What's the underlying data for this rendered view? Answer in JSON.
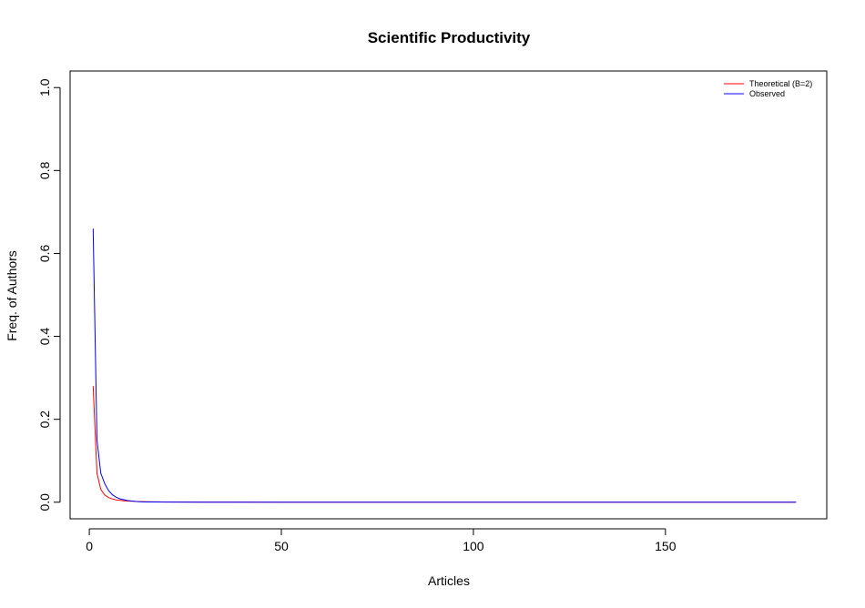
{
  "chart_data": {
    "type": "line",
    "title": "Scientific Productivity",
    "xlabel": "Articles",
    "ylabel": "Freq. of Authors",
    "xlim": [
      -5,
      192
    ],
    "ylim": [
      -0.04,
      1.04
    ],
    "xticks": [
      0,
      50,
      100,
      150
    ],
    "yticks": [
      0.0,
      0.2,
      0.4,
      0.6,
      0.8,
      1.0
    ],
    "xtick_labels": [
      "0",
      "50",
      "100",
      "150"
    ],
    "ytick_labels": [
      "0.0",
      "0.2",
      "0.4",
      "0.6",
      "0.8",
      "1.0"
    ],
    "grid": false,
    "legend_position": "top-right",
    "series": [
      {
        "name": "Theoretical (B=2)",
        "color": "#ff0000",
        "x": [
          1,
          2,
          3,
          4,
          5,
          6,
          7,
          8,
          9,
          10,
          12,
          15,
          20,
          30,
          50,
          100,
          150,
          184
        ],
        "y": [
          0.28,
          0.07,
          0.031,
          0.0175,
          0.0112,
          0.0078,
          0.0057,
          0.0044,
          0.0035,
          0.0028,
          0.0019,
          0.0012,
          0.0007,
          0.0003,
          0.0001,
          0.0,
          0.0,
          0.0
        ]
      },
      {
        "name": "Observed",
        "color": "#0000ff",
        "x": [
          1,
          2,
          3,
          4,
          5,
          6,
          7,
          8,
          9,
          10,
          11,
          12,
          13,
          15,
          20,
          30,
          50,
          100,
          150,
          184
        ],
        "y": [
          0.66,
          0.15,
          0.07,
          0.045,
          0.028,
          0.018,
          0.012,
          0.008,
          0.006,
          0.004,
          0.003,
          0.002,
          0.001,
          0.0005,
          0.0003,
          0.0002,
          0.0001,
          0.0,
          0.0,
          0.0
        ]
      }
    ]
  }
}
